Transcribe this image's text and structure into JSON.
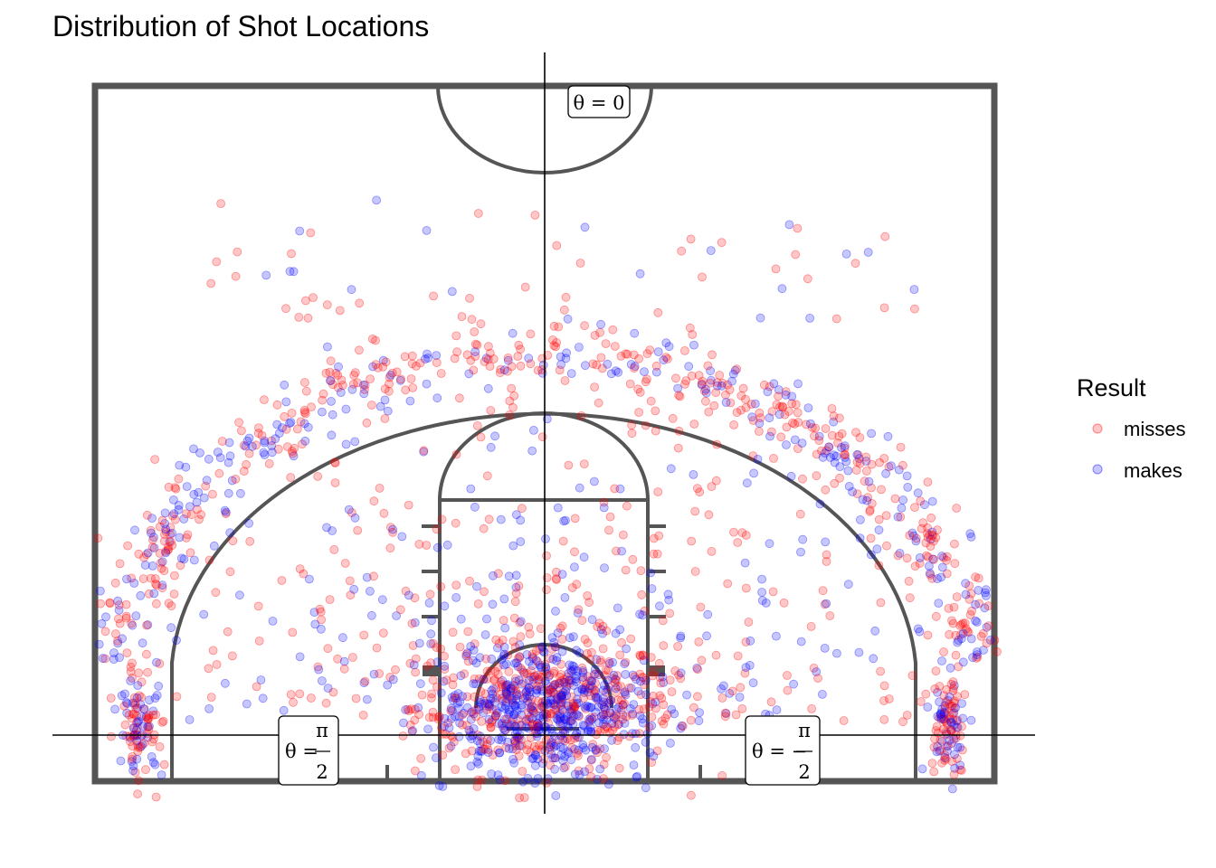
{
  "chart_data": {
    "type": "scatter",
    "title": "Distribution of Shot Locations",
    "xlabel": "",
    "ylabel": "",
    "grid": false,
    "legend": {
      "title": "Result",
      "position": "right",
      "entries": [
        {
          "name": "misses",
          "color": "#ff0000"
        },
        {
          "name": "makes",
          "color": "#0000ff"
        }
      ]
    },
    "annotations": [
      {
        "id": "theta-zero",
        "text": "θ = 0"
      },
      {
        "id": "theta-left",
        "text": "θ = π/2",
        "lhs": "θ =",
        "num": "π",
        "den": "2"
      },
      {
        "id": "theta-right",
        "text": "θ = −π/2",
        "lhs": "θ = −",
        "num": "π",
        "den": "2"
      }
    ],
    "xlim": [
      -25,
      25
    ],
    "ylim": [
      -4,
      34.5
    ],
    "point_alpha": 0.22,
    "series": [
      {
        "name": "misses",
        "color": "#ff0000",
        "clusters": [
          {
            "kind": "near_basket",
            "count": 380,
            "x_mean": 0,
            "y_mean": 1.8,
            "x_sd": 3.6,
            "y_sd": 2.2
          },
          {
            "kind": "three_point_arc",
            "count": 420,
            "radius_mean": 24.3,
            "radius_sd": 1.1,
            "angle_range_deg": [
              -80,
              80
            ]
          },
          {
            "kind": "left_corner",
            "count": 60,
            "x_mean": -22.3,
            "y_mean": 0.5,
            "x_sd": 0.6,
            "y_sd": 1.5
          },
          {
            "kind": "right_corner",
            "count": 60,
            "x_mean": 22.3,
            "y_mean": 0.5,
            "x_sd": 0.6,
            "y_sd": 1.5
          },
          {
            "kind": "midrange",
            "count": 260,
            "radius_range": [
              5,
              22
            ],
            "angle_range_deg": [
              -88,
              88
            ]
          },
          {
            "kind": "backcourt",
            "count": 40,
            "x_range": [
              -23,
              23
            ],
            "y_range": [
              26,
              34
            ]
          }
        ]
      },
      {
        "name": "makes",
        "color": "#0000ff",
        "clusters": [
          {
            "kind": "near_basket",
            "count": 460,
            "x_mean": 0,
            "y_mean": 1.5,
            "x_sd": 3.0,
            "y_sd": 2.0
          },
          {
            "kind": "three_point_arc",
            "count": 260,
            "radius_mean": 24.3,
            "radius_sd": 1.1,
            "angle_range_deg": [
              -80,
              80
            ]
          },
          {
            "kind": "left_corner",
            "count": 45,
            "x_mean": -22.3,
            "y_mean": 0.5,
            "x_sd": 0.6,
            "y_sd": 1.5
          },
          {
            "kind": "right_corner",
            "count": 45,
            "x_mean": 22.3,
            "y_mean": 0.5,
            "x_sd": 0.6,
            "y_sd": 1.5
          },
          {
            "kind": "midrange",
            "count": 180,
            "radius_range": [
              5,
              22
            ],
            "angle_range_deg": [
              -88,
              88
            ]
          },
          {
            "kind": "backcourt",
            "count": 20,
            "x_range": [
              -23,
              23
            ],
            "y_range": [
              26,
              34
            ]
          }
        ]
      }
    ]
  }
}
